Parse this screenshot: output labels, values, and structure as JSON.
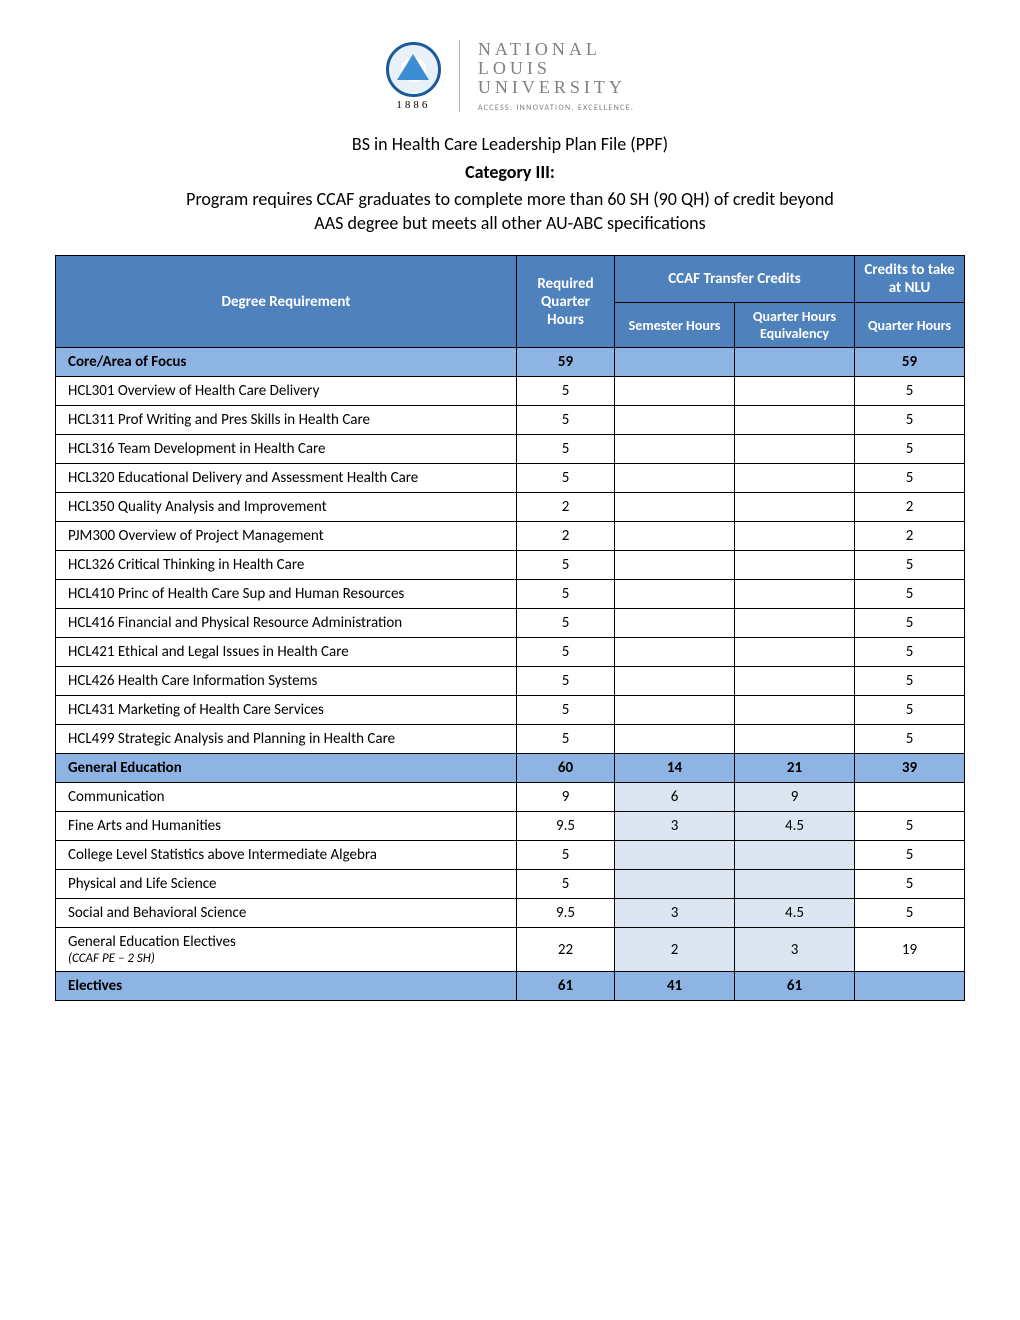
{
  "logo": {
    "year": "1886",
    "univ_line1": "NATIONAL",
    "univ_line2": "LOUIS",
    "univ_line3": "UNIVERSITY",
    "tagline": "ACCESS. INNOVATION. EXCELLENCE."
  },
  "header": {
    "title": "BS in Health Care Leadership Plan File (PPF)",
    "category": "Category III:",
    "subtitle_line1": "Program requires CCAF graduates to complete more than 60 SH (90 QH) of credit beyond",
    "subtitle_line2": "AAS degree  but meets all other AU-ABC specifications"
  },
  "columns": {
    "degree_req": "Degree Requirement",
    "required_qh": "Required Quarter Hours",
    "ccaf": "CCAF Transfer Credits",
    "credits_nlu": "Credits to take at NLU",
    "sem_hours": "Semester Hours",
    "qh_equiv": "Quarter Hours Equivalency",
    "qh": "Quarter Hours"
  },
  "sections": [
    {
      "type": "section",
      "label": "Core/Area of Focus",
      "req": "59",
      "sem": "",
      "qhe": "",
      "nlu": "59"
    },
    {
      "type": "row",
      "label": "HCL301 Overview of Health Care Delivery",
      "req": "5",
      "sem": "",
      "qhe": "",
      "nlu": "5"
    },
    {
      "type": "row",
      "label": "HCL311 Prof Writing and Pres Skills in Health Care",
      "req": "5",
      "sem": "",
      "qhe": "",
      "nlu": "5"
    },
    {
      "type": "row",
      "label": "HCL316 Team Development in Health Care",
      "req": "5",
      "sem": "",
      "qhe": "",
      "nlu": "5"
    },
    {
      "type": "row",
      "label": "HCL320 Educational Delivery and Assessment Health Care",
      "req": "5",
      "sem": "",
      "qhe": "",
      "nlu": "5"
    },
    {
      "type": "row",
      "label": "HCL350 Quality Analysis and Improvement",
      "req": "2",
      "sem": "",
      "qhe": "",
      "nlu": "2"
    },
    {
      "type": "row",
      "label": "PJM300 Overview of Project Management",
      "req": "2",
      "sem": "",
      "qhe": "",
      "nlu": "2"
    },
    {
      "type": "row",
      "label": "HCL326 Critical Thinking in Health Care",
      "req": "5",
      "sem": "",
      "qhe": "",
      "nlu": "5"
    },
    {
      "type": "row",
      "label": "HCL410 Princ of Health Care Sup and Human Resources",
      "req": "5",
      "sem": "",
      "qhe": "",
      "nlu": "5"
    },
    {
      "type": "row",
      "label": "HCL416 Financial and Physical Resource Administration",
      "req": "5",
      "sem": "",
      "qhe": "",
      "nlu": "5"
    },
    {
      "type": "row",
      "label": "HCL421 Ethical and Legal Issues in Health Care",
      "req": "5",
      "sem": "",
      "qhe": "",
      "nlu": "5"
    },
    {
      "type": "row",
      "label": "HCL426 Health Care Information Systems",
      "req": "5",
      "sem": "",
      "qhe": "",
      "nlu": "5"
    },
    {
      "type": "row",
      "label": "HCL431 Marketing of Health Care Services",
      "req": "5",
      "sem": "",
      "qhe": "",
      "nlu": "5"
    },
    {
      "type": "row",
      "label": "HCL499 Strategic Analysis and Planning in Health Care",
      "req": "5",
      "sem": "",
      "qhe": "",
      "nlu": "5"
    },
    {
      "type": "section",
      "label": "General Education",
      "req": "60",
      "sem": "14",
      "qhe": "21",
      "nlu": "39"
    },
    {
      "type": "tint",
      "label": "Communication",
      "req": "9",
      "sem": "6",
      "qhe": "9",
      "nlu": ""
    },
    {
      "type": "tint",
      "label": "Fine Arts and Humanities",
      "req": "9.5",
      "sem": "3",
      "qhe": "4.5",
      "nlu": "5"
    },
    {
      "type": "tint",
      "label": "College Level Statistics above Intermediate Algebra",
      "req": "5",
      "sem": "",
      "qhe": "",
      "nlu": "5"
    },
    {
      "type": "tint",
      "label": "Physical and Life Science",
      "req": "5",
      "sem": "",
      "qhe": "",
      "nlu": "5"
    },
    {
      "type": "tint",
      "label": "Social and Behavioral Science",
      "req": "9.5",
      "sem": "3",
      "qhe": "4.5",
      "nlu": "5"
    },
    {
      "type": "tint",
      "label": "General Education Electives",
      "sublabel": "(CCAF PE – 2 SH)",
      "req": "22",
      "sem": "2",
      "qhe": "3",
      "nlu": "19"
    },
    {
      "type": "electives",
      "label": "Electives",
      "req": "61",
      "sem": "41",
      "qhe": "61",
      "nlu": ""
    }
  ],
  "colors": {
    "header_bg": "#4f81bd",
    "section_bg": "#8eb4e3",
    "tint_bg": "#dce6f2",
    "border": "#000000",
    "text": "#000000",
    "header_text": "#ffffff"
  }
}
